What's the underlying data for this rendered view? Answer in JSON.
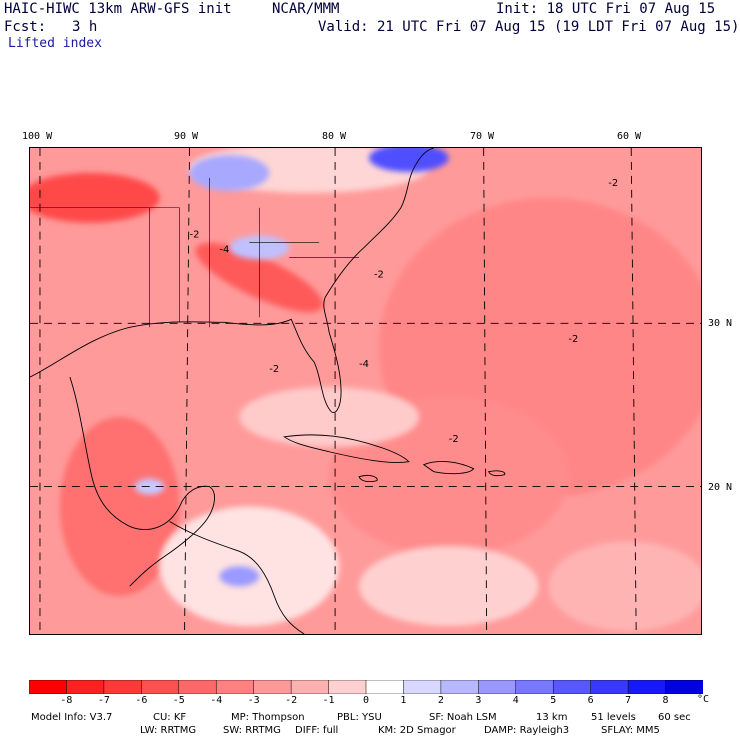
{
  "header": {
    "model": "HAIC-HIWC 13km ARW-GFS init",
    "org": "NCAR/MMM",
    "init": "Init: 18 UTC Fri 07 Aug 15",
    "fcst_label": "Fcst:",
    "fcst_value": "3 h",
    "valid": "Valid: 21 UTC Fri 07 Aug 15 (19 LDT Fri 07 Aug 15)",
    "field": "Lifted index"
  },
  "map": {
    "lon_labels": [
      "100 W",
      "90 W",
      "80 W",
      "70 W",
      "60 W"
    ],
    "lat_labels": [
      "30 N",
      "20 N"
    ],
    "contour_labels": [
      "-2",
      "-4"
    ],
    "colors": {
      "land_border": "#000000",
      "grid": "#000000"
    }
  },
  "colorbar": {
    "ticks": [
      "-8",
      "-7",
      "-6",
      "-5",
      "-4",
      "-3",
      "-2",
      "-1",
      "0",
      "1",
      "2",
      "3",
      "4",
      "5",
      "6",
      "7",
      "8"
    ],
    "unit": "°C",
    "colors": [
      "#ff0000",
      "#ff2020",
      "#ff3838",
      "#ff5050",
      "#ff6868",
      "#ff8080",
      "#ff9898",
      "#ffb0b0",
      "#ffd0d0",
      "#ffffff",
      "#d8d8ff",
      "#b8b8ff",
      "#9898ff",
      "#7878ff",
      "#5858ff",
      "#3838ff",
      "#1818ff",
      "#0000e0"
    ]
  },
  "info": {
    "line1": [
      "Model Info: V3.7",
      "CU: KF",
      "MP: Thompson",
      "PBL: YSU",
      "SF: Noah LSM",
      "13 km",
      "51 levels",
      "60 sec"
    ],
    "line2": [
      "LW: RRTMG",
      "SW: RRTMG",
      "DIFF: full",
      "KM: 2D Smagor",
      "DAMP: Rayleigh3",
      "SFLAY: MM5"
    ]
  }
}
